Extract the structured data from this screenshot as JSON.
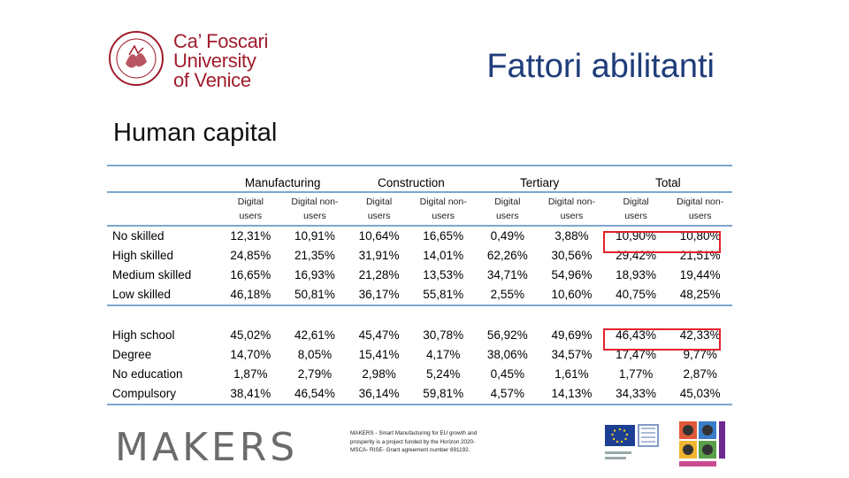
{
  "logo": {
    "lines": [
      "Ca’ Foscari",
      "University",
      "of Venice"
    ],
    "color": "#a01c2c"
  },
  "title": "Fattori abilitanti",
  "section": "Human capital",
  "table": {
    "groups": [
      "Manufacturing",
      "Construction",
      "Tertiary",
      "Total"
    ],
    "subheaders": [
      [
        "Digital",
        "users"
      ],
      [
        "Digital non-",
        "users"
      ],
      [
        "Digital",
        "users"
      ],
      [
        "Digital non-",
        "users"
      ],
      [
        "Digital",
        "users"
      ],
      [
        "Digital non-",
        "users"
      ],
      [
        "Digital",
        "users"
      ],
      [
        "Digital non-",
        "users"
      ]
    ],
    "rows": [
      {
        "label": "No skilled",
        "values": [
          "12,31%",
          "10,91%",
          "10,64%",
          "16,65%",
          "0,49%",
          "3,88%",
          "10,90%",
          "10,80%"
        ]
      },
      {
        "label": "High skilled",
        "values": [
          "24,85%",
          "21,35%",
          "31,91%",
          "14,01%",
          "62,26%",
          "30,56%",
          "29,42%",
          "21,51%"
        ]
      },
      {
        "label": "Medium skilled",
        "values": [
          "16,65%",
          "16,93%",
          "21,28%",
          "13,53%",
          "34,71%",
          "54,96%",
          "18,93%",
          "19,44%"
        ]
      },
      {
        "label": "Low skilled",
        "values": [
          "46,18%",
          "50,81%",
          "36,17%",
          "55,81%",
          "2,55%",
          "10,60%",
          "40,75%",
          "48,25%"
        ]
      },
      {
        "label": "High school",
        "values": [
          "45,02%",
          "42,61%",
          "45,47%",
          "30,78%",
          "56,92%",
          "49,69%",
          "46,43%",
          "42,33%"
        ]
      },
      {
        "label": "Degree",
        "values": [
          "14,70%",
          "8,05%",
          "15,41%",
          "4,17%",
          "38,06%",
          "34,57%",
          "17,47%",
          "9,77%"
        ]
      },
      {
        "label": "No education",
        "values": [
          "1,87%",
          "2,79%",
          "2,98%",
          "5,24%",
          "0,45%",
          "1,61%",
          "1,77%",
          "2,87%"
        ]
      },
      {
        "label": "Compulsory",
        "values": [
          "38,41%",
          "46,54%",
          "36,14%",
          "59,81%",
          "4,57%",
          "14,13%",
          "34,33%",
          "45,03%"
        ]
      }
    ],
    "highlight_color": "#e3212b",
    "rule_color": "#7da7d0"
  },
  "footer": {
    "brand": "MAKERS",
    "note": "MAKERS - Smart Manufacturing for EU growth and prosperity is a project funded by the Horizon 2020-MSCA- RISE- Grant agreement number 691192."
  }
}
